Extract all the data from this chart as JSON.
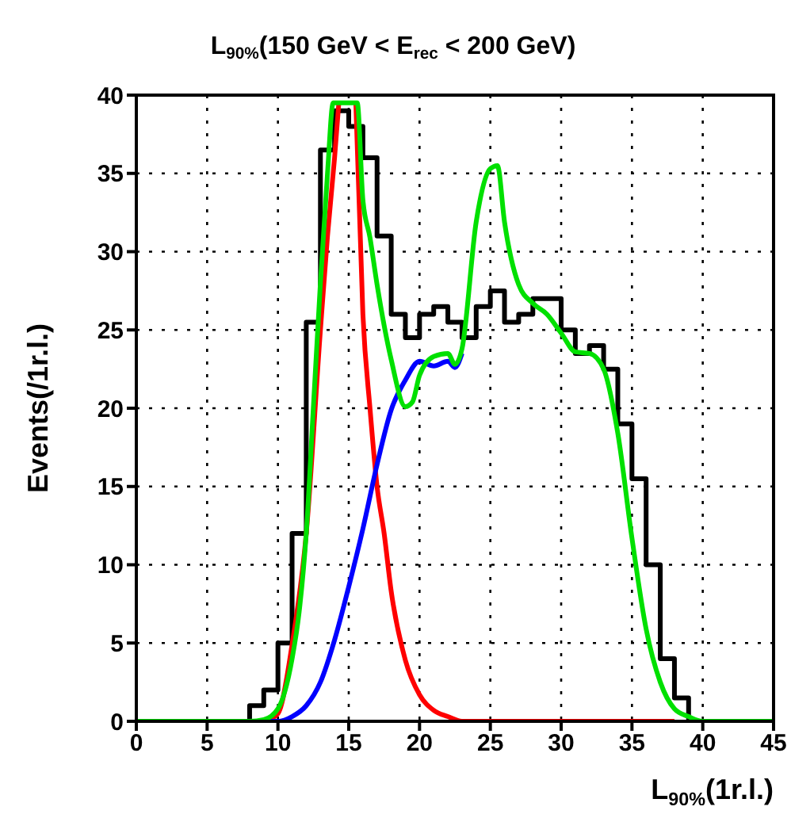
{
  "chart_data": {
    "type": "line",
    "title": "L$_{90%}$(150 GeV < E$_{rec}$ < 200 GeV)",
    "xlabel": "L$_{90%}$(1r.l.)",
    "ylabel": "Events(/1r.l.)",
    "series": [
      {
        "type": "step",
        "color": "#000000",
        "x": [
          0,
          1,
          2,
          3,
          4,
          5,
          6,
          7,
          8,
          9,
          10,
          11,
          12,
          13,
          14,
          15,
          16,
          17,
          18,
          19,
          20,
          21,
          22,
          23,
          24,
          25,
          26,
          27,
          28,
          29,
          30,
          31,
          32,
          33,
          34,
          35,
          36,
          37,
          38,
          39,
          40,
          41,
          42,
          43,
          44
        ],
        "values": [
          0,
          0,
          0,
          0,
          0,
          0,
          0,
          0,
          1,
          2,
          5,
          12,
          25.5,
          36.5,
          39,
          38,
          36,
          31,
          26,
          24.5,
          26,
          26.5,
          25.5,
          24.5,
          26.5,
          27.5,
          25.5,
          26,
          27,
          27,
          25,
          23.5,
          24,
          22.5,
          19,
          15.5,
          10,
          4,
          1.5,
          0,
          0,
          0,
          0,
          0,
          0
        ]
      },
      {
        "color": "#ff0000",
        "x": [
          9,
          10,
          11,
          12,
          13,
          13.5,
          14,
          14.3,
          15.3,
          15.5,
          16,
          16.5,
          17,
          17.5,
          18,
          19,
          20,
          21,
          22,
          23,
          25,
          30,
          35,
          38
        ],
        "values": [
          0,
          0.5,
          4.9,
          12,
          25,
          31,
          36,
          39.5,
          null,
          39.5,
          26,
          20,
          15,
          12,
          8.3,
          3.9,
          1.7,
          0.7,
          0.3,
          0,
          0,
          0,
          0,
          0
        ]
      },
      {
        "color": "#0000ff",
        "x": [
          9,
          10,
          11,
          12,
          13,
          14,
          15,
          16,
          17,
          18,
          19,
          20,
          21,
          22,
          22.5,
          23
        ],
        "values": [
          0,
          0,
          0.3,
          1,
          2.5,
          5.2,
          8.6,
          12.3,
          16.4,
          19.9,
          21.8,
          23,
          22.7,
          23,
          22.6,
          23.5
        ]
      },
      {
        "color": "#00e000",
        "x": [
          0,
          5,
          8,
          9,
          10,
          11,
          11.5,
          12,
          12.5,
          13,
          13.5,
          13.9,
          15.6,
          16,
          16.5,
          17,
          18,
          19,
          19.5,
          20,
          21,
          22,
          22.5,
          23,
          24,
          25,
          25.5,
          26,
          27,
          28,
          29,
          30,
          31,
          32,
          33,
          34,
          35,
          36,
          37,
          38,
          39,
          40,
          45
        ],
        "values": [
          0,
          0,
          0,
          0.1,
          0.8,
          4,
          7,
          12,
          20,
          28,
          35,
          39.5,
          39.5,
          33.3,
          30.9,
          27.9,
          23.1,
          20.1,
          20.4,
          22.1,
          23.3,
          23.5,
          22.8,
          23.8,
          31.9,
          35.3,
          35.5,
          31.9,
          27.9,
          26.7,
          26,
          24.8,
          23.6,
          23.5,
          22.5,
          18.4,
          11.7,
          5.9,
          2.5,
          0.8,
          0.3,
          0,
          0
        ]
      }
    ],
    "xlim": [
      0,
      45
    ],
    "xticks": [
      0,
      5,
      10,
      15,
      20,
      25,
      30,
      35,
      40,
      45
    ],
    "ylim": [
      0,
      40
    ],
    "yticks": [
      0,
      5,
      10,
      15,
      20,
      25,
      30,
      35,
      40
    ],
    "grid": true,
    "line_style": "solid",
    "marker": "none"
  }
}
